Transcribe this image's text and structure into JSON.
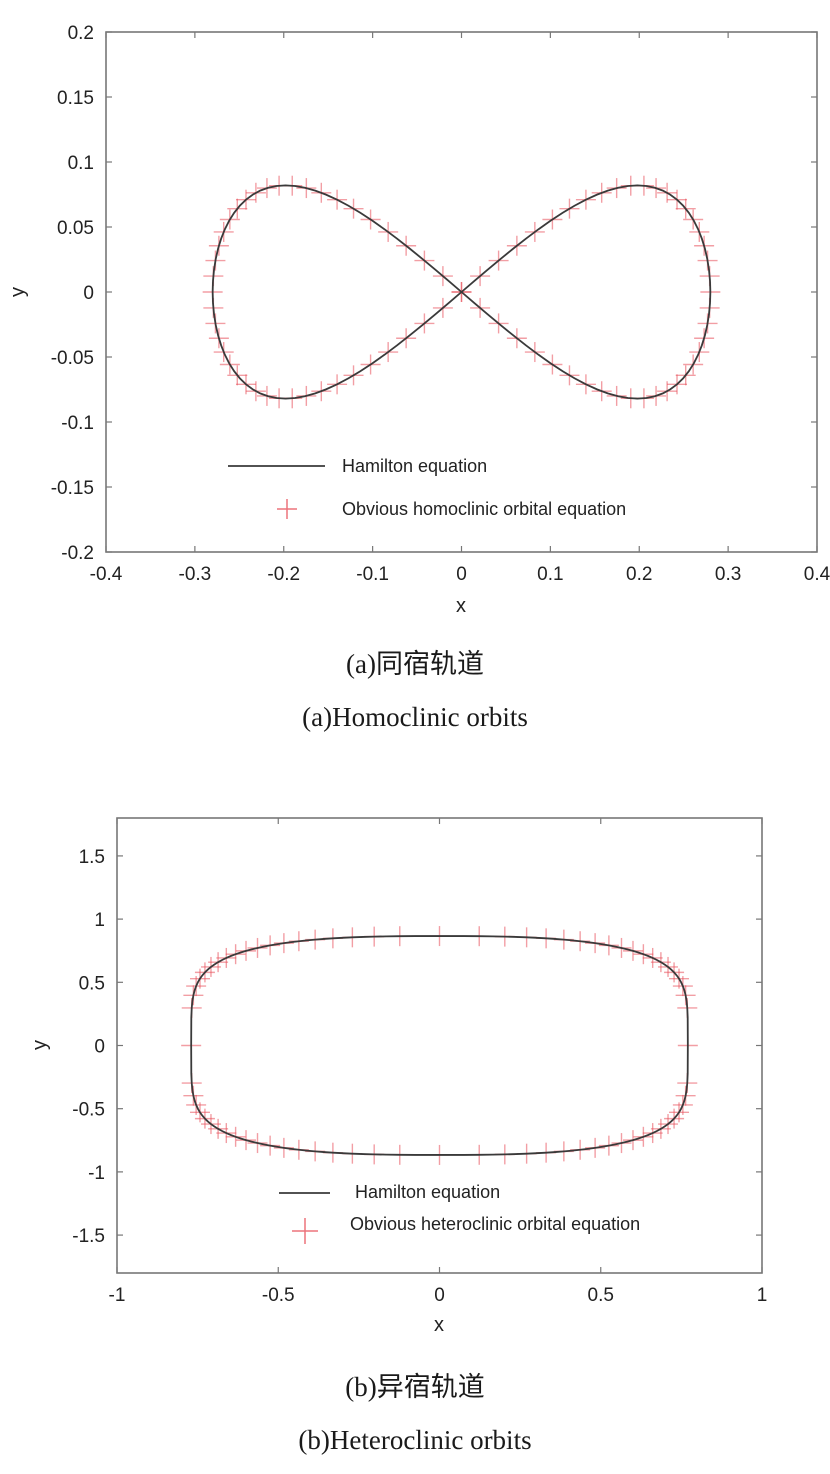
{
  "colors": {
    "line": "#3a3a3a",
    "marker": "#e8505b",
    "axes": "#777777"
  },
  "figures": [
    {
      "caption_cn": "(a)同宿轨道",
      "caption_en": "(a)Homoclinic orbits"
    },
    {
      "caption_cn": "(b)异宿轨道",
      "caption_en": "(b)Heteroclinic orbits"
    }
  ],
  "chart_data": [
    {
      "type": "line",
      "xlabel": "x",
      "ylabel": "y",
      "xlim": [
        -0.4,
        0.4
      ],
      "ylim": [
        -0.2,
        0.2
      ],
      "xticks": [
        -0.4,
        -0.3,
        -0.2,
        -0.1,
        0,
        0.1,
        0.2,
        0.3,
        0.4
      ],
      "xtick_labels": [
        "-0.4",
        "-0.3",
        "-0.2",
        "-0.1",
        "0",
        "0.1",
        "0.2",
        "0.3",
        "0.4"
      ],
      "yticks": [
        -0.2,
        -0.15,
        -0.1,
        -0.05,
        0,
        0.05,
        0.1,
        0.15,
        0.2
      ],
      "ytick_labels": [
        "-0.2",
        "-0.15",
        "-0.1",
        "-0.05",
        "0",
        "0.05",
        "0.1",
        "0.15",
        "0.2"
      ],
      "grid": false,
      "legend_position": "bottom-center",
      "series": [
        {
          "name": "Hamilton equation",
          "style": "line",
          "curve": "lemniscate",
          "x_extent": 0.28,
          "y_extent": 0.082,
          "points": 120
        },
        {
          "name": "Obvious homoclinic orbital equation",
          "style": "plus-marker",
          "curve": "lemniscate",
          "x_extent": 0.28,
          "y_extent": 0.082,
          "points": 84
        }
      ]
    },
    {
      "type": "line",
      "xlabel": "x",
      "ylabel": "y",
      "xlim": [
        -1,
        1
      ],
      "ylim": [
        -1.8,
        1.8
      ],
      "xticks": [
        -1,
        -0.5,
        0,
        0.5,
        1
      ],
      "xtick_labels": [
        "-1",
        "-0.5",
        "0",
        "0.5",
        "1"
      ],
      "yticks": [
        -1.5,
        -1,
        -0.5,
        0,
        0.5,
        1,
        1.5
      ],
      "ytick_labels": [
        "-1.5",
        "-1",
        "-0.5",
        "0",
        "0.5",
        "1",
        "1.5"
      ],
      "grid": false,
      "legend_position": "bottom-center",
      "series": [
        {
          "name": "Hamilton equation",
          "style": "line",
          "curve": "heteroclinic",
          "x_extent": 0.77,
          "y_extent": 0.866,
          "points": 160
        },
        {
          "name": "Obvious heteroclinic orbital equation",
          "style": "plus-marker",
          "curve": "heteroclinic",
          "x_extent": 0.77,
          "y_extent": 0.866,
          "points": 80
        }
      ]
    }
  ]
}
